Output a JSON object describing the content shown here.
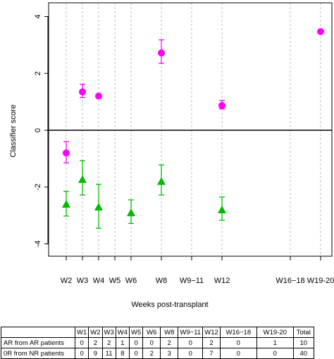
{
  "chart_data": {
    "type": "scatter",
    "title": "",
    "xlabel": "Weeks post-transplant",
    "ylabel": "Classifier score",
    "ylim": [
      -4.8,
      4.4
    ],
    "yticks": [
      -4,
      -2,
      0,
      2,
      4
    ],
    "categories": [
      "W2",
      "W3",
      "W4",
      "W5",
      "W6",
      "W8",
      "W9−11",
      "W12",
      "W16−18",
      "W19-20"
    ],
    "reference_line": 0,
    "grid": "vertical dashed lines at each category",
    "series": [
      {
        "name": "",
        "marker": "circle",
        "color": "#ff00ff",
        "points": [
          {
            "x": "W2",
            "y": -0.8,
            "low": -1.15,
            "high": -0.4
          },
          {
            "x": "W3",
            "y": 1.35,
            "low": 1.15,
            "high": 1.62
          },
          {
            "x": "W4",
            "y": 1.2
          },
          {
            "x": "W8",
            "y": 2.72,
            "low": 2.35,
            "high": 3.18
          },
          {
            "x": "W12",
            "y": 0.87,
            "low": 0.75,
            "high": 1.05
          },
          {
            "x": "W19-20",
            "y": 3.47
          }
        ]
      },
      {
        "name": "",
        "marker": "triangle",
        "color": "#00bb00",
        "points": [
          {
            "x": "W2",
            "y": -2.6,
            "low": -3.02,
            "high": -2.15
          },
          {
            "x": "W3",
            "y": -1.73,
            "low": -2.28,
            "high": -1.07
          },
          {
            "x": "W4",
            "y": -2.7,
            "low": -3.45,
            "high": -1.9
          },
          {
            "x": "W6",
            "y": -2.9,
            "low": -3.28,
            "high": -2.45
          },
          {
            "x": "W8",
            "y": -1.8,
            "low": -2.28,
            "high": -1.22
          },
          {
            "x": "W12",
            "y": -2.8,
            "low": -3.17,
            "high": -2.35
          }
        ]
      }
    ]
  },
  "table": {
    "headers": [
      "W1",
      "W2",
      "W3",
      "W4",
      "W5",
      "W6",
      "W8",
      "W9−11",
      "W12",
      "W16−18",
      "W19-20",
      "Total"
    ],
    "rows": [
      {
        "label": "AR from AR patients",
        "values": [
          "0",
          "2",
          "2",
          "1",
          "0",
          "0",
          "2",
          "0",
          "2",
          "0",
          "1",
          "10"
        ]
      },
      {
        "label": "0R from NR patients",
        "values": [
          "0",
          "9",
          "11",
          "8",
          "0",
          "2",
          "3",
          "0",
          "7",
          "0",
          "0",
          "40"
        ]
      }
    ]
  }
}
